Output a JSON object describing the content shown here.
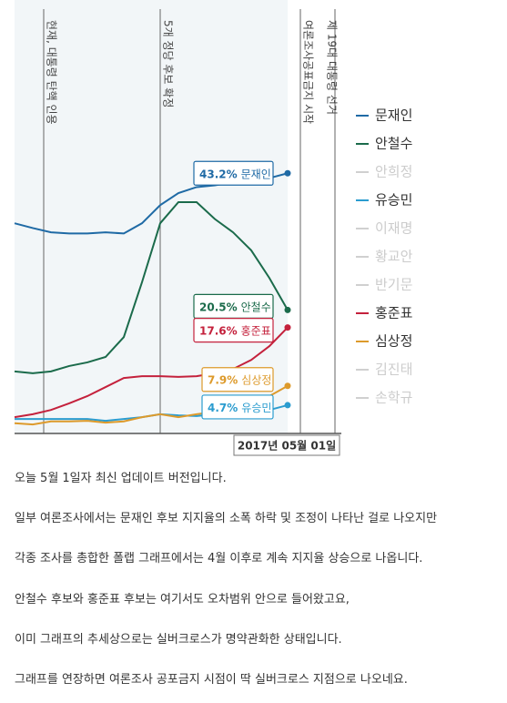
{
  "chart_data": {
    "type": "line",
    "categories": [
      null,
      null,
      null,
      null,
      null,
      null,
      null,
      null,
      null,
      null,
      null,
      null,
      null,
      null,
      null,
      "2017년 05월 01일"
    ],
    "ylim": [
      0,
      70
    ],
    "annotations": [
      "현재, 대통령 탄핵 인용",
      "5개 정당 후보 확정",
      "여론조사공표금지 시작",
      "제 19대 대통령 선거"
    ],
    "series": [
      {
        "name": "문재인",
        "color": "#1f6aa5",
        "values": [
          34.9,
          34.1,
          33.4,
          33.2,
          33.2,
          33.4,
          33.2,
          34.9,
          37.9,
          39.9,
          40.9,
          41.2,
          41.7,
          42.0,
          42.4,
          43.2
        ],
        "value_labels": [
          null,
          null,
          null,
          null,
          null,
          null,
          null,
          null,
          null,
          null,
          null,
          null,
          null,
          null,
          null,
          "43.2%"
        ]
      },
      {
        "name": "안철수",
        "color": "#1b6b4b",
        "values": [
          10.3,
          10.0,
          10.3,
          11.2,
          11.8,
          12.7,
          16.0,
          25.1,
          34.9,
          38.4,
          38.4,
          35.6,
          33.4,
          30.4,
          25.8,
          20.5
        ],
        "value_labels": [
          null,
          null,
          null,
          null,
          null,
          null,
          null,
          null,
          null,
          null,
          null,
          null,
          null,
          null,
          null,
          "20.5%"
        ]
      },
      {
        "name": "안희정",
        "color": "#d0d0d0"
      },
      {
        "name": "유승민",
        "color": "#2b9ccf",
        "values": [
          2.4,
          2.4,
          2.4,
          2.4,
          2.4,
          2.1,
          2.4,
          2.7,
          3.2,
          3.0,
          2.9,
          3.2,
          3.2,
          3.5,
          3.9,
          4.7
        ],
        "value_labels": [
          null,
          null,
          null,
          null,
          null,
          null,
          null,
          null,
          null,
          null,
          null,
          null,
          null,
          null,
          null,
          "4.7%"
        ]
      },
      {
        "name": "이재명",
        "color": "#d0d0d0"
      },
      {
        "name": "황교안",
        "color": "#d0d0d0"
      },
      {
        "name": "반기문",
        "color": "#d0d0d0"
      },
      {
        "name": "홍준표",
        "color": "#c4213c",
        "values": [
          2.7,
          3.2,
          3.9,
          5.0,
          6.2,
          7.7,
          9.2,
          9.5,
          9.5,
          9.4,
          9.5,
          10.0,
          10.7,
          12.2,
          14.5,
          17.6
        ],
        "value_labels": [
          null,
          null,
          null,
          null,
          null,
          null,
          null,
          null,
          null,
          null,
          null,
          null,
          null,
          null,
          null,
          "17.6%"
        ]
      },
      {
        "name": "심상정",
        "color": "#dd9a2b",
        "values": [
          1.7,
          1.5,
          2.0,
          2.0,
          2.1,
          1.8,
          2.0,
          2.7,
          3.2,
          2.7,
          3.2,
          3.6,
          4.2,
          5.1,
          6.2,
          7.9
        ],
        "value_labels": [
          null,
          null,
          null,
          null,
          null,
          null,
          null,
          null,
          null,
          null,
          null,
          null,
          null,
          null,
          null,
          "7.9%"
        ]
      },
      {
        "name": "김진태",
        "color": "#d0d0d0"
      },
      {
        "name": "손학규",
        "color": "#d0d0d0"
      }
    ]
  },
  "paragraphs": [
    "오늘 5월 1일자 최신 업데이트 버전입니다.",
    "일부 여론조사에서는 문재인 후보 지지율의 소폭 하락 및 조정이 나타난 걸로 나오지만",
    "각종 조사를 총합한 폴랩 그래프에서는 4월 이후로 계속 지지율 상승으로 나옵니다.",
    "안철수 후보와 홍준표 후보는 여기서도 오차범위 안으로 들어왔고요,",
    "이미 그래프의 추세상으로는 실버크로스가 명약관화한 상태입니다.",
    "그래프를 연장하면 여론조사 공포금지 시점이 딱 실버크로스 지점으로 나오네요."
  ]
}
